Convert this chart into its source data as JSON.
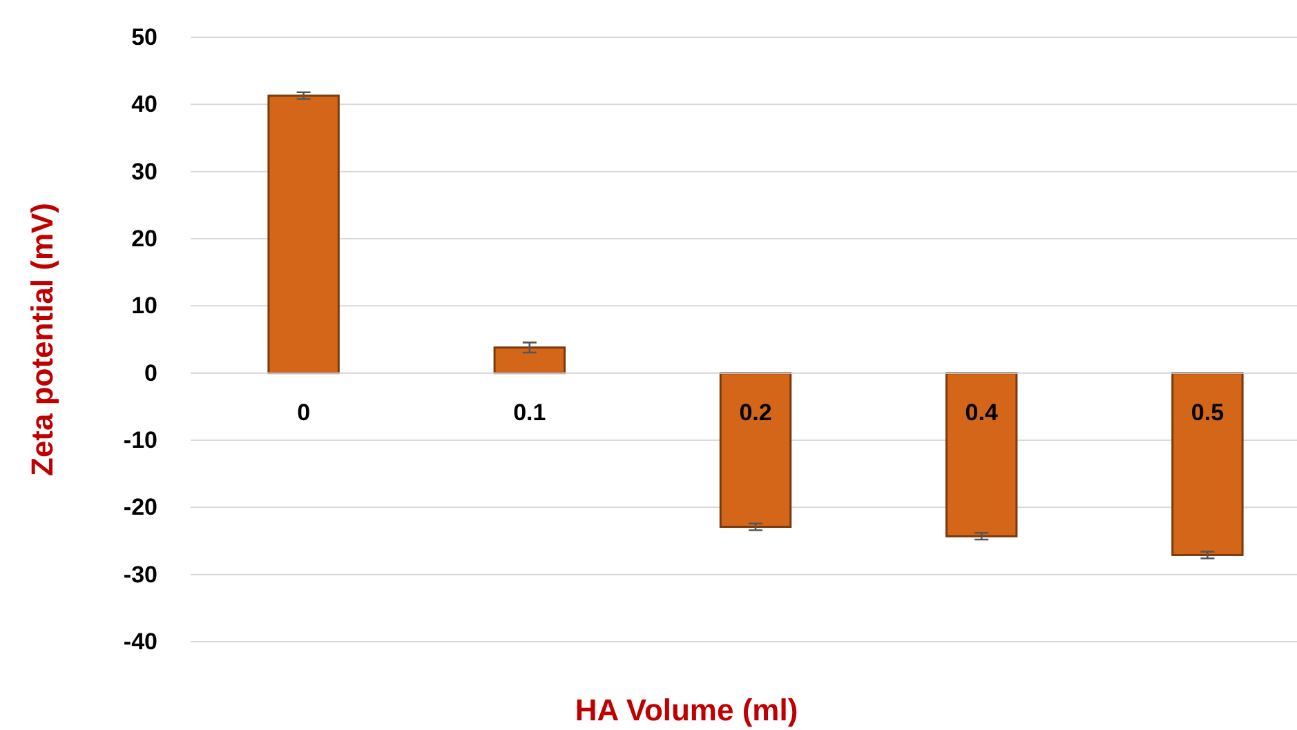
{
  "chart_data": {
    "type": "bar",
    "xlabel": "HA Volume (ml)",
    "ylabel": "Zeta potential (mV)",
    "categories": [
      "0",
      "0.1",
      "0.2",
      "0.4",
      "0.5"
    ],
    "values": [
      41.3,
      3.8,
      -22.9,
      -24.3,
      -27.1
    ],
    "errors": [
      0.5,
      0.75,
      0.5,
      0.5,
      0.5
    ],
    "color": "#d4661a",
    "ylim": [
      -40,
      50
    ],
    "yticks": [
      -40,
      -30,
      -20,
      -10,
      0,
      10,
      20,
      30,
      40,
      50
    ],
    "grid": "y"
  }
}
